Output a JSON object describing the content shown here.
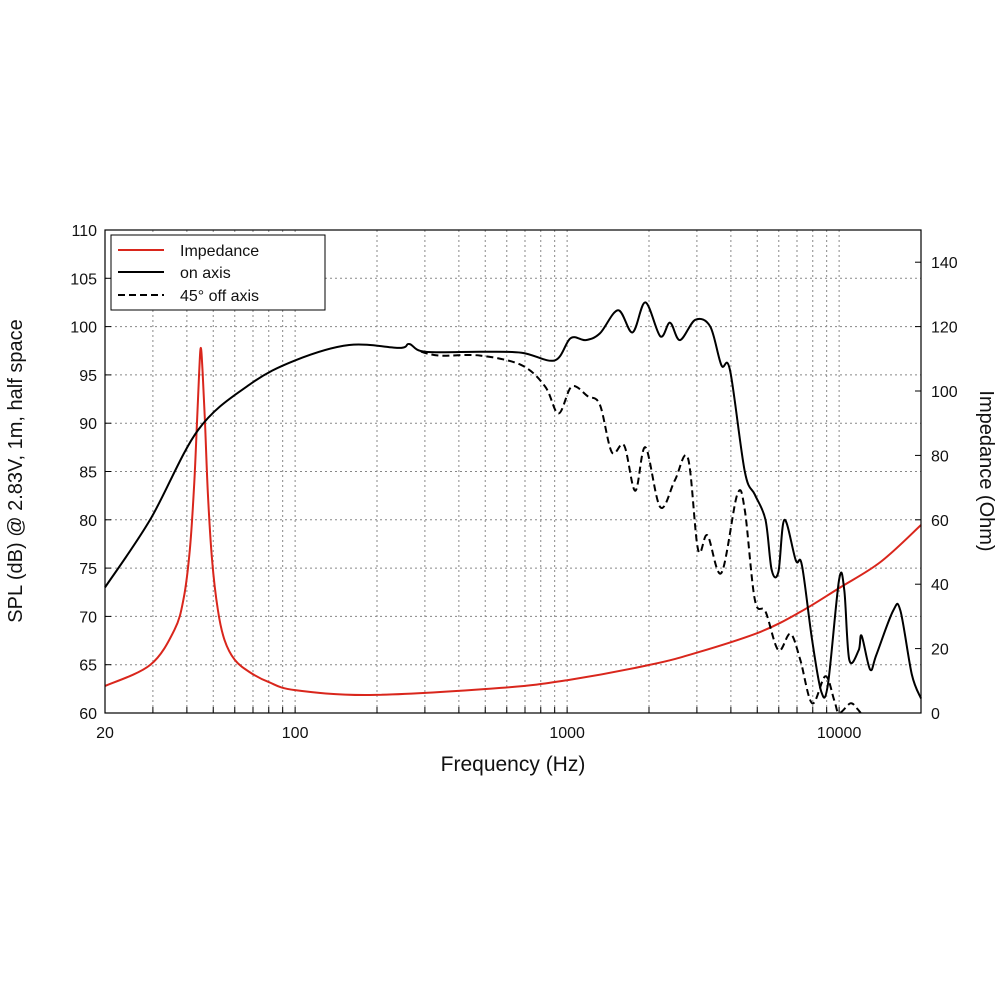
{
  "chart_data": {
    "type": "line",
    "xlabel": "Frequency (Hz)",
    "ylabel": "SPL (dB) @ 2.83V, 1m, half space",
    "y2label": "Impedance (Ohm)",
    "xscale": "log",
    "xlim": [
      20,
      20000
    ],
    "ylim": [
      60,
      110
    ],
    "y2lim": [
      0,
      150
    ],
    "xticks": [
      20,
      100,
      1000,
      10000
    ],
    "yticks": [
      60,
      65,
      70,
      75,
      80,
      85,
      90,
      95,
      100,
      105,
      110
    ],
    "y2ticks": [
      0,
      20,
      40,
      60,
      80,
      100,
      120,
      140
    ],
    "grid": true,
    "legend_position": "top-left",
    "colors": {
      "impedance": "#d9261c",
      "on_axis": "#000000",
      "off_axis": "#000000"
    },
    "series": [
      {
        "name": "Impedance",
        "axis": "right",
        "style": "solid",
        "color": "#d9261c",
        "x": [
          20,
          29.3,
          36,
          39,
          41,
          42.5,
          43.6,
          44.4,
          45,
          45.7,
          46.6,
          47.8,
          49.5,
          52,
          55,
          60,
          68,
          80,
          100,
          188,
          570,
          1000,
          2000,
          3050,
          5130,
          7200,
          10000,
          14200,
          20000
        ],
        "y": [
          8.4,
          14.9,
          25.8,
          36,
          50.6,
          70,
          91,
          106,
          113.4,
          106,
          91,
          68,
          47.5,
          32,
          22.7,
          16.5,
          12.7,
          9.6,
          7.1,
          5.6,
          7.8,
          10.2,
          14.9,
          18.9,
          25.2,
          31.4,
          38.8,
          46.9,
          58.4
        ]
      },
      {
        "name": "on axis",
        "axis": "left",
        "style": "solid",
        "color": "#000000",
        "x": [
          20,
          29.3,
          44,
          68,
          100,
          158,
          242,
          263,
          300,
          480,
          680,
          900,
          1030,
          1170,
          1320,
          1540,
          1740,
          1940,
          2200,
          2390,
          2600,
          2960,
          3360,
          3690,
          3970,
          4500,
          4900,
          5360,
          5650,
          5980,
          6290,
          6930,
          7300,
          7960,
          8600,
          9100,
          10000,
          10450,
          10900,
          11800,
          12100,
          13000,
          13700,
          15800,
          16800,
          18500,
          20000
        ],
        "y": [
          73,
          80,
          89.3,
          94,
          96.5,
          98.1,
          97.8,
          98.2,
          97.4,
          97.4,
          97.3,
          96.5,
          98.8,
          98.6,
          99.3,
          101.7,
          99.4,
          102.5,
          99,
          100.4,
          98.6,
          100.7,
          100,
          96,
          95.5,
          85,
          82.6,
          80,
          74.8,
          74.6,
          80,
          75.8,
          75.3,
          67.5,
          62.2,
          63,
          73.8,
          72.7,
          65.5,
          66.5,
          68,
          64.5,
          66,
          70.6,
          70.6,
          64,
          61.5
        ]
      },
      {
        "name": "45° off axis",
        "axis": "left",
        "style": "dashed",
        "color": "#000000",
        "x": [
          290,
          340,
          480,
          680,
          830,
          930,
          1040,
          1190,
          1320,
          1460,
          1620,
          1780,
          1940,
          2200,
          2490,
          2780,
          3030,
          3280,
          3690,
          4220,
          4500,
          4900,
          5360,
          5980,
          6620,
          7200,
          7960,
          8900,
          9600,
          10000,
          11000,
          11600,
          12000
        ],
        "y": [
          97.4,
          97,
          97,
          96,
          93.8,
          91,
          93.8,
          92.8,
          91.9,
          87,
          87.7,
          83,
          87.5,
          81.3,
          84.1,
          86.4,
          76.9,
          78.4,
          74.5,
          82.6,
          81,
          71.7,
          70.5,
          66.5,
          68.2,
          65.5,
          61,
          63.8,
          61.3,
          60,
          61,
          60.5,
          60
        ]
      }
    ]
  }
}
